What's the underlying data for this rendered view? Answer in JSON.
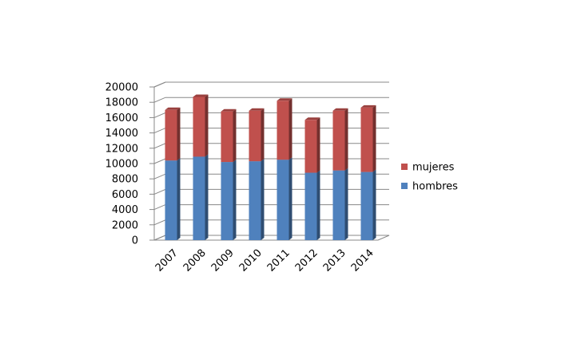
{
  "chart_data": {
    "type": "bar3d_stacked",
    "categories": [
      "2007",
      "2008",
      "2009",
      "2010",
      "2011",
      "2012",
      "2013",
      "2014"
    ],
    "series": [
      {
        "name": "hombres",
        "color": "#4f81bd",
        "values": [
          10400,
          10900,
          10200,
          10300,
          10500,
          8800,
          9100,
          8900
        ]
      },
      {
        "name": "mujeres",
        "color": "#c0504d",
        "values": [
          6600,
          7800,
          6600,
          6600,
          7700,
          6900,
          7800,
          8400
        ]
      }
    ],
    "ylim": [
      0,
      20000
    ],
    "yticks": [
      0,
      2000,
      4000,
      6000,
      8000,
      10000,
      12000,
      14000,
      16000,
      18000,
      20000
    ],
    "grid": true,
    "legend": "right"
  }
}
